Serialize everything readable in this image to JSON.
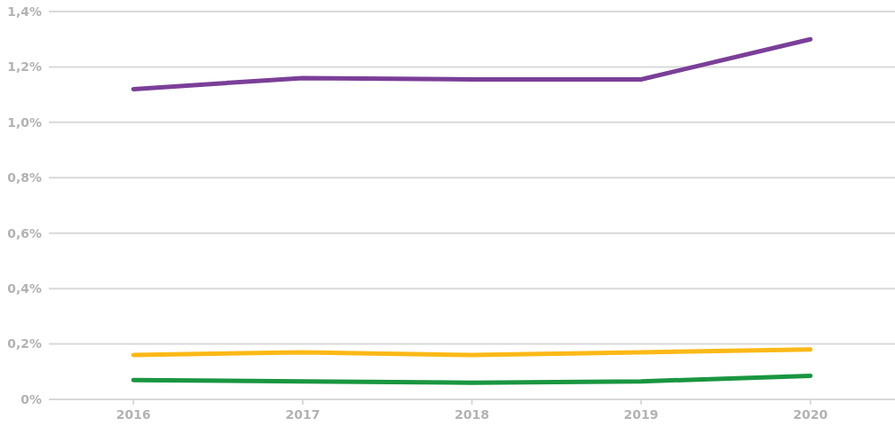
{
  "chart_data": {
    "type": "line",
    "categories": [
      "2016",
      "2017",
      "2018",
      "2019",
      "2020"
    ],
    "series": [
      {
        "color": "#7b3f98",
        "values": [
          1.12,
          1.16,
          1.155,
          1.155,
          1.3
        ]
      },
      {
        "color": "#fbb917",
        "values": [
          0.16,
          0.17,
          0.16,
          0.17,
          0.18
        ]
      },
      {
        "color": "#1a9641",
        "values": [
          0.07,
          0.065,
          0.06,
          0.065,
          0.085
        ]
      }
    ],
    "ylim": [
      0,
      1.4
    ],
    "yticks": [
      {
        "value": 0,
        "label": "0%"
      },
      {
        "value": 0.2,
        "label": "0,2%"
      },
      {
        "value": 0.4,
        "label": "0,4%"
      },
      {
        "value": 0.6,
        "label": "0,6%"
      },
      {
        "value": 0.8,
        "label": "0,8%"
      },
      {
        "value": 1,
        "label": "1,0%"
      },
      {
        "value": 1.2,
        "label": "1,2%"
      },
      {
        "value": 1.4,
        "label": "1,4%"
      }
    ],
    "grid": "y",
    "marker": "none",
    "line_style": "solid"
  }
}
